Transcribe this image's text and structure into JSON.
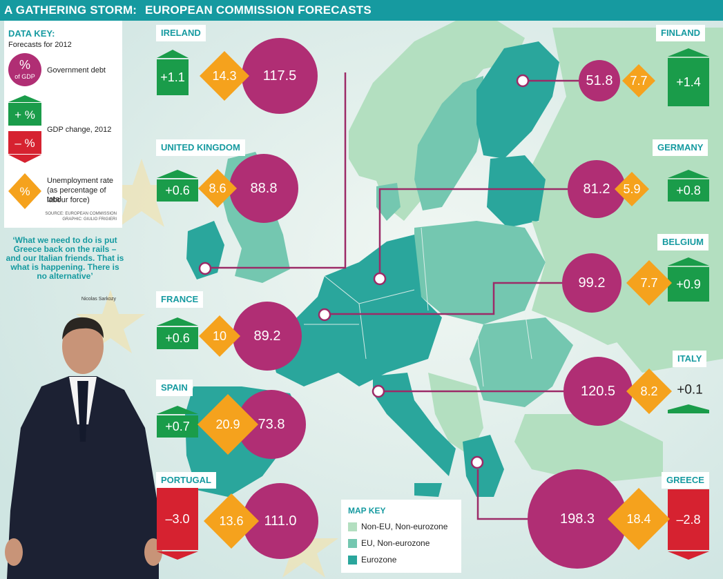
{
  "title": {
    "left": "A GATHERING STORM:",
    "right": "EUROPEAN COMMISSION FORECASTS"
  },
  "data_key": {
    "heading": "DATA KEY:",
    "subheading": "Forecasts for 2012",
    "debt_symbol": "%",
    "debt_unit": "of GDP",
    "debt_label": "Government debt",
    "gdp_plus": "+ %",
    "gdp_minus": "– %",
    "gdp_label": "GDP change, 2012",
    "unemp_symbol": "%",
    "unemp_label_1": "Unemployment rate",
    "unemp_label_2": "(as percentage of total",
    "unemp_label_3": "labour force)",
    "source_1": "SOURCE: EUROPEAN COMMISSION",
    "source_2": "GRAPHIC: GIULIO FRIGIERI"
  },
  "quote": {
    "text": "‘What we need to do is put Greece back on the rails – and our Italian friends. That is what is happening. There is no alternative’",
    "author": "Nicolas Sarkozy"
  },
  "map_key": {
    "title": "MAP KEY",
    "items": [
      {
        "label": "Non-EU, Non-eurozone",
        "color": "#b3dfc0"
      },
      {
        "label": "EU, Non-eurozone",
        "color": "#74c7b0"
      },
      {
        "label": "Eurozone",
        "color": "#2aa69c"
      }
    ]
  },
  "colors": {
    "debt": "#b02e74",
    "unemployment": "#f5a21d",
    "gdp_positive": "#1a9c4a",
    "gdp_negative": "#d62230",
    "accent": "#169aa0"
  },
  "chart_data": {
    "type": "infographic",
    "title": "A GATHERING STORM: EUROPEAN COMMISSION FORECASTS",
    "subtitle": "Forecasts for 2012",
    "metrics": [
      "Government debt (% of GDP)",
      "Unemployment rate (% of total labour force)",
      "GDP change, 2012 (%)"
    ],
    "countries": [
      {
        "name": "IRELAND",
        "debt": "117.5",
        "unemployment": "14.3",
        "gdp": "+1.1",
        "gdp_sign": "positive"
      },
      {
        "name": "UNITED KINGDOM",
        "debt": "88.8",
        "unemployment": "8.6",
        "gdp": "+0.6",
        "gdp_sign": "positive"
      },
      {
        "name": "FRANCE",
        "debt": "89.2",
        "unemployment": "10",
        "gdp": "+0.6",
        "gdp_sign": "positive"
      },
      {
        "name": "SPAIN",
        "debt": "73.8",
        "unemployment": "20.9",
        "gdp": "+0.7",
        "gdp_sign": "positive"
      },
      {
        "name": "PORTUGAL",
        "debt": "111.0",
        "unemployment": "13.6",
        "gdp": "-3.0",
        "gdp_sign": "negative"
      },
      {
        "name": "FINLAND",
        "debt": "51.8",
        "unemployment": "7.7",
        "gdp": "+1.4",
        "gdp_sign": "positive"
      },
      {
        "name": "GERMANY",
        "debt": "81.2",
        "unemployment": "5.9",
        "gdp": "+0.8",
        "gdp_sign": "positive"
      },
      {
        "name": "BELGIUM",
        "debt": "99.2",
        "unemployment": "7.7",
        "gdp": "+0.9",
        "gdp_sign": "positive"
      },
      {
        "name": "ITALY",
        "debt": "120.5",
        "unemployment": "8.2",
        "gdp": "+0.1",
        "gdp_sign": "positive"
      },
      {
        "name": "GREECE",
        "debt": "198.3",
        "unemployment": "18.4",
        "gdp": "-2.8",
        "gdp_sign": "negative"
      }
    ]
  }
}
